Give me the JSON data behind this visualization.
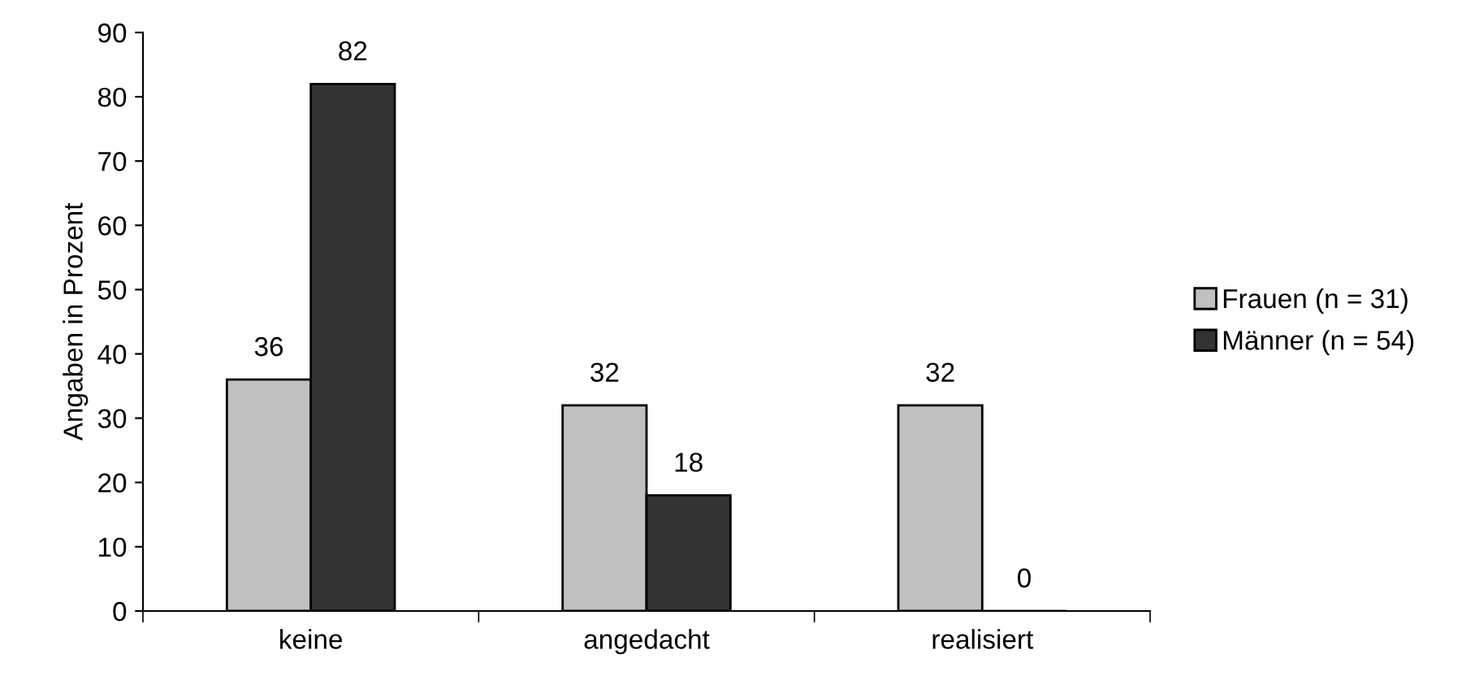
{
  "chart_data": {
    "type": "bar",
    "ylabel": "Angaben in Prozent",
    "categories": [
      "keine",
      "angedacht",
      "realisiert"
    ],
    "series": [
      {
        "name": "Frauen (n = 31)",
        "color": "#c0c0c0",
        "values": [
          36,
          32,
          32
        ]
      },
      {
        "name": "Männer (n = 54)",
        "color": "#333333",
        "values": [
          82,
          18,
          0
        ]
      }
    ],
    "ylim": [
      0,
      90
    ],
    "yticks": [
      0,
      10,
      20,
      30,
      40,
      50,
      60,
      70,
      80,
      90
    ],
    "data_labels": true,
    "legend": "right",
    "grid": false
  }
}
